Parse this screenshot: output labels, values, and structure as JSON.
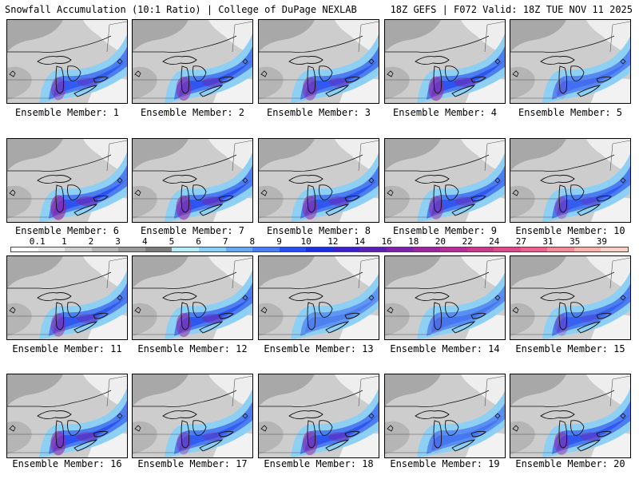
{
  "header": {
    "title": "Snowfall Accumulation (10:1 Ratio) | College of DuPage NEXLAB",
    "valid": "18Z GEFS | F072 Valid: 18Z TUE NOV 11 2025"
  },
  "legend": {
    "labels": [
      "0.1",
      "1",
      "2",
      "3",
      "4",
      "5",
      "6",
      "7",
      "8",
      "9",
      "10",
      "12",
      "14",
      "16",
      "18",
      "20",
      "22",
      "24",
      "27",
      "31",
      "35",
      "39"
    ],
    "colors": [
      "#ffffff",
      "#e8e8e8",
      "#cfcfcf",
      "#b4b4b4",
      "#9a9a9a",
      "#7d7d7d",
      "#b8ecf4",
      "#8ed0f4",
      "#6aa8f0",
      "#4c7ef0",
      "#2a50f0",
      "#1e2ee0",
      "#3c22c8",
      "#5a20b4",
      "#7a22a8",
      "#9a269e",
      "#b43094",
      "#c83c8c",
      "#da4c8a",
      "#e8648e",
      "#f08c9a",
      "#f6b4b0",
      "#f8d4c8"
    ]
  },
  "panels": [
    {
      "caption": "Ensemble Member: 1",
      "intensity": 0.75
    },
    {
      "caption": "Ensemble Member: 2",
      "intensity": 0.85
    },
    {
      "caption": "Ensemble Member: 3",
      "intensity": 0.8
    },
    {
      "caption": "Ensemble Member: 4",
      "intensity": 0.9
    },
    {
      "caption": "Ensemble Member: 5",
      "intensity": 0.45
    },
    {
      "caption": "Ensemble Member: 6",
      "intensity": 0.95
    },
    {
      "caption": "Ensemble Member: 7",
      "intensity": 0.9
    },
    {
      "caption": "Ensemble Member: 8",
      "intensity": 0.85
    },
    {
      "caption": "Ensemble Member: 9",
      "intensity": 0.8
    },
    {
      "caption": "Ensemble Member: 10",
      "intensity": 0.7
    },
    {
      "caption": "Ensemble Member: 11",
      "intensity": 0.8
    },
    {
      "caption": "Ensemble Member: 12",
      "intensity": 0.85
    },
    {
      "caption": "Ensemble Member: 13",
      "intensity": 0.3
    },
    {
      "caption": "Ensemble Member: 14",
      "intensity": 0.4
    },
    {
      "caption": "Ensemble Member: 15",
      "intensity": 0.6
    },
    {
      "caption": "Ensemble Member: 16",
      "intensity": 0.9
    },
    {
      "caption": "Ensemble Member: 17",
      "intensity": 0.7
    },
    {
      "caption": "Ensemble Member: 18",
      "intensity": 0.85
    },
    {
      "caption": "Ensemble Member: 19",
      "intensity": 0.4
    },
    {
      "caption": "Ensemble Member: 20",
      "intensity": 0.8
    }
  ]
}
